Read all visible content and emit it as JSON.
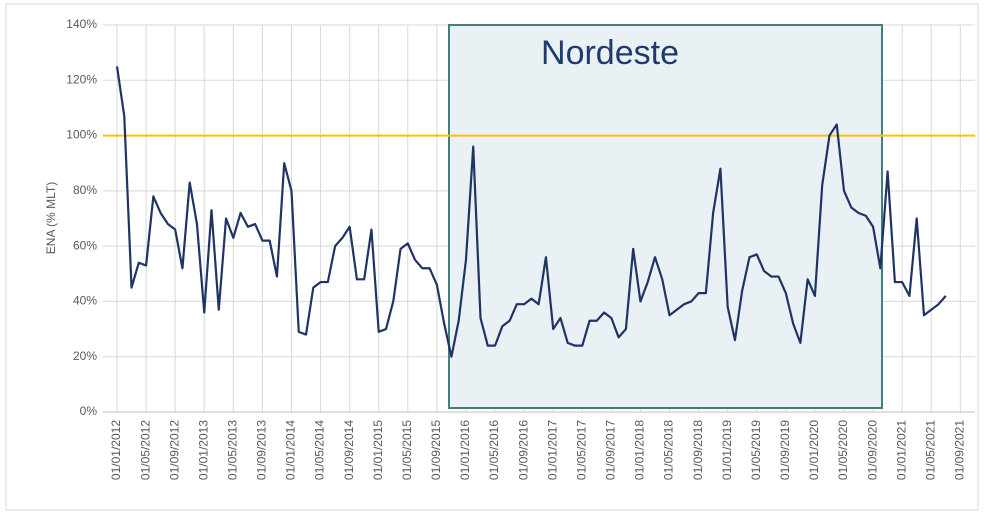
{
  "chart_data": {
    "type": "line",
    "y_label": "ENA (% MLT)",
    "annotation": "Nordeste",
    "reference_line": {
      "value": 100,
      "color": "#ffc000"
    },
    "categories": [
      "01/01/2012",
      null,
      null,
      null,
      "01/05/2012",
      null,
      null,
      null,
      "01/09/2012",
      null,
      null,
      null,
      "01/01/2013",
      null,
      null,
      null,
      "01/05/2013",
      null,
      null,
      null,
      "01/09/2013",
      null,
      null,
      null,
      "01/01/2014",
      null,
      null,
      null,
      "01/05/2014",
      null,
      null,
      null,
      "01/09/2014",
      null,
      null,
      null,
      "01/01/2015",
      null,
      null,
      null,
      "01/05/2015",
      null,
      null,
      null,
      "01/09/2015",
      null,
      null,
      null,
      "01/01/2016",
      null,
      null,
      null,
      "01/05/2016",
      null,
      null,
      null,
      "01/09/2016",
      null,
      null,
      null,
      "01/01/2017",
      null,
      null,
      null,
      "01/05/2017",
      null,
      null,
      null,
      "01/09/2017",
      null,
      null,
      null,
      "01/01/2018",
      null,
      null,
      null,
      "01/05/2018",
      null,
      null,
      null,
      "01/09/2018",
      null,
      null,
      null,
      "01/01/2019",
      null,
      null,
      null,
      "01/05/2019",
      null,
      null,
      null,
      "01/09/2019",
      null,
      null,
      null,
      "01/01/2020",
      null,
      null,
      null,
      "01/05/2020",
      null,
      null,
      null,
      "01/09/2020",
      null,
      null,
      null,
      "01/01/2021",
      null,
      null,
      null,
      "01/05/2021",
      null,
      null,
      null,
      "01/09/2021"
    ],
    "series": [
      {
        "name": "ENA",
        "color": "#1f3464",
        "values": [
          125,
          107,
          45,
          54,
          53,
          78,
          72,
          68,
          66,
          52,
          83,
          68,
          36,
          73,
          37,
          70,
          63,
          72,
          67,
          68,
          62,
          62,
          49,
          90,
          80,
          29,
          28,
          45,
          47,
          47,
          60,
          63,
          67,
          48,
          48,
          66,
          29,
          30,
          40,
          59,
          61,
          55,
          52,
          52,
          46,
          32,
          20,
          33,
          55,
          96,
          34,
          24,
          24,
          31,
          33,
          39,
          39,
          41,
          39,
          56,
          30,
          34,
          25,
          24,
          24,
          33,
          33,
          36,
          34,
          27,
          30,
          59,
          40,
          47,
          56,
          48,
          35,
          37,
          39,
          40,
          43,
          43,
          72,
          88,
          38,
          26,
          44,
          56,
          57,
          51,
          49,
          49,
          43,
          32,
          25,
          48,
          42,
          82,
          100,
          104,
          80,
          74,
          72,
          71,
          67,
          52,
          87,
          47,
          47,
          42,
          70,
          35,
          37,
          39,
          42,
          null,
          null
        ]
      }
    ],
    "ylim": [
      0,
      140
    ],
    "yticks": [
      {
        "value": 0,
        "label": "0%"
      },
      {
        "value": 20,
        "label": "20%"
      },
      {
        "value": 40,
        "label": "40%"
      },
      {
        "value": 60,
        "label": "60%"
      },
      {
        "value": 80,
        "label": "80%"
      },
      {
        "value": 100,
        "label": "100%"
      },
      {
        "value": 120,
        "label": "120%"
      },
      {
        "value": 140,
        "label": "140%"
      }
    ],
    "grid": true
  }
}
